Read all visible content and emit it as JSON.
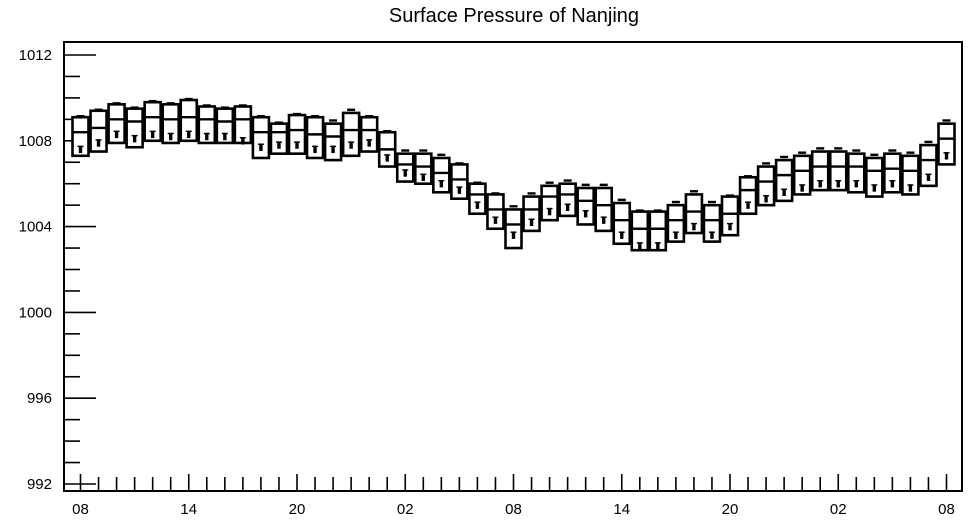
{
  "chart_data": {
    "type": "box",
    "title": "Surface Pressure of Nanjing",
    "xlabel": "",
    "ylabel": "",
    "ylim": [
      992,
      1013.3
    ],
    "y_ticks": [
      "992",
      "996",
      "1000",
      "1004",
      "1008",
      "1012"
    ],
    "x_tick_labels": [
      "08",
      "14",
      "20",
      "02",
      "08",
      "14",
      "20",
      "02",
      "08"
    ],
    "x_tick_hours": [
      0,
      6,
      12,
      18,
      24,
      30,
      36,
      42,
      48
    ],
    "grid": false,
    "series": [
      {
        "values": [
          {
            "hour": 0,
            "low": 1007.3,
            "q1": 1007.3,
            "median": 1008.4,
            "q3": 1009.1,
            "high": 1009.1,
            "marker": 1007.6
          },
          {
            "hour": 1,
            "low": 1007.5,
            "q1": 1007.5,
            "median": 1008.6,
            "q3": 1009.4,
            "high": 1009.4,
            "marker": 1007.9
          },
          {
            "hour": 2,
            "low": 1007.9,
            "q1": 1007.9,
            "median": 1009.0,
            "q3": 1009.7,
            "high": 1009.7,
            "marker": 1008.3
          },
          {
            "hour": 3,
            "low": 1007.7,
            "q1": 1007.7,
            "median": 1008.9,
            "q3": 1009.5,
            "high": 1009.5,
            "marker": 1008.1
          },
          {
            "hour": 4,
            "low": 1008.0,
            "q1": 1008.0,
            "median": 1009.1,
            "q3": 1009.8,
            "high": 1009.8,
            "marker": 1008.3
          },
          {
            "hour": 5,
            "low": 1007.9,
            "q1": 1007.9,
            "median": 1009.0,
            "q3": 1009.7,
            "high": 1009.7,
            "marker": 1008.2
          },
          {
            "hour": 6,
            "low": 1008.0,
            "q1": 1008.0,
            "median": 1009.1,
            "q3": 1009.9,
            "high": 1009.9,
            "marker": 1008.3
          },
          {
            "hour": 7,
            "low": 1007.9,
            "q1": 1007.9,
            "median": 1009.0,
            "q3": 1009.6,
            "high": 1009.6,
            "marker": 1008.2
          },
          {
            "hour": 8,
            "low": 1007.9,
            "q1": 1007.9,
            "median": 1008.9,
            "q3": 1009.5,
            "high": 1009.5,
            "marker": 1008.2
          },
          {
            "hour": 9,
            "low": 1007.9,
            "q1": 1007.9,
            "median": 1009.0,
            "q3": 1009.6,
            "high": 1009.6,
            "marker": 1008.0
          },
          {
            "hour": 10,
            "low": 1007.2,
            "q1": 1007.2,
            "median": 1008.4,
            "q3": 1009.1,
            "high": 1009.1,
            "marker": 1007.7
          },
          {
            "hour": 11,
            "low": 1007.4,
            "q1": 1007.4,
            "median": 1008.4,
            "q3": 1008.8,
            "high": 1008.8,
            "marker": 1007.8
          },
          {
            "hour": 12,
            "low": 1007.4,
            "q1": 1007.4,
            "median": 1008.5,
            "q3": 1009.2,
            "high": 1009.2,
            "marker": 1007.8
          },
          {
            "hour": 13,
            "low": 1007.2,
            "q1": 1007.2,
            "median": 1008.3,
            "q3": 1009.1,
            "high": 1009.1,
            "marker": 1007.6
          },
          {
            "hour": 14,
            "low": 1007.1,
            "q1": 1007.1,
            "median": 1008.2,
            "q3": 1008.8,
            "high": 1008.9,
            "marker": 1007.6
          },
          {
            "hour": 15,
            "low": 1007.3,
            "q1": 1007.3,
            "median": 1008.5,
            "q3": 1009.3,
            "high": 1009.4,
            "marker": 1007.8
          },
          {
            "hour": 16,
            "low": 1007.5,
            "q1": 1007.5,
            "median": 1008.5,
            "q3": 1009.1,
            "high": 1009.1,
            "marker": 1007.9
          },
          {
            "hour": 17,
            "low": 1006.8,
            "q1": 1006.8,
            "median": 1007.6,
            "q3": 1008.4,
            "high": 1008.4,
            "marker": 1007.2
          },
          {
            "hour": 18,
            "low": 1006.1,
            "q1": 1006.1,
            "median": 1006.9,
            "q3": 1007.4,
            "high": 1007.5,
            "marker": 1006.5
          },
          {
            "hour": 19,
            "low": 1006.0,
            "q1": 1006.0,
            "median": 1006.8,
            "q3": 1007.4,
            "high": 1007.5,
            "marker": 1006.3
          },
          {
            "hour": 20,
            "low": 1005.6,
            "q1": 1005.6,
            "median": 1006.5,
            "q3": 1007.2,
            "high": 1007.3,
            "marker": 1006.0
          },
          {
            "hour": 21,
            "low": 1005.3,
            "q1": 1005.3,
            "median": 1006.2,
            "q3": 1006.9,
            "high": 1006.9,
            "marker": 1005.7
          },
          {
            "hour": 22,
            "low": 1004.6,
            "q1": 1004.6,
            "median": 1005.5,
            "q3": 1006.0,
            "high": 1006.0,
            "marker": 1005.0
          },
          {
            "hour": 23,
            "low": 1003.9,
            "q1": 1003.9,
            "median": 1004.8,
            "q3": 1005.5,
            "high": 1005.5,
            "marker": 1004.3
          },
          {
            "hour": 24,
            "low": 1003.0,
            "q1": 1003.0,
            "median": 1004.1,
            "q3": 1004.8,
            "high": 1004.9,
            "marker": 1003.6
          },
          {
            "hour": 25,
            "low": 1003.8,
            "q1": 1003.8,
            "median": 1004.8,
            "q3": 1005.4,
            "high": 1005.5,
            "marker": 1004.2
          },
          {
            "hour": 26,
            "low": 1004.3,
            "q1": 1004.3,
            "median": 1005.4,
            "q3": 1005.9,
            "high": 1006.0,
            "marker": 1004.7
          },
          {
            "hour": 27,
            "low": 1004.5,
            "q1": 1004.5,
            "median": 1005.5,
            "q3": 1006.0,
            "high": 1006.1,
            "marker": 1004.9
          },
          {
            "hour": 28,
            "low": 1004.1,
            "q1": 1004.1,
            "median": 1005.2,
            "q3": 1005.8,
            "high": 1005.9,
            "marker": 1004.6
          },
          {
            "hour": 29,
            "low": 1003.8,
            "q1": 1003.8,
            "median": 1005.0,
            "q3": 1005.8,
            "high": 1005.9,
            "marker": 1004.3
          },
          {
            "hour": 30,
            "low": 1003.2,
            "q1": 1003.2,
            "median": 1004.3,
            "q3": 1005.1,
            "high": 1005.2,
            "marker": 1003.6
          },
          {
            "hour": 31,
            "low": 1002.9,
            "q1": 1002.9,
            "median": 1003.9,
            "q3": 1004.7,
            "high": 1004.7,
            "marker": 1003.1
          },
          {
            "hour": 32,
            "low": 1002.9,
            "q1": 1002.9,
            "median": 1003.9,
            "q3": 1004.7,
            "high": 1004.7,
            "marker": 1003.1
          },
          {
            "hour": 33,
            "low": 1003.3,
            "q1": 1003.3,
            "median": 1004.3,
            "q3": 1005.0,
            "high": 1005.1,
            "marker": 1003.6
          },
          {
            "hour": 34,
            "low": 1003.7,
            "q1": 1003.7,
            "median": 1004.7,
            "q3": 1005.5,
            "high": 1005.6,
            "marker": 1004.0
          },
          {
            "hour": 35,
            "low": 1003.3,
            "q1": 1003.3,
            "median": 1004.3,
            "q3": 1005.0,
            "high": 1005.1,
            "marker": 1003.6
          },
          {
            "hour": 36,
            "low": 1003.6,
            "q1": 1003.6,
            "median": 1004.6,
            "q3": 1005.4,
            "high": 1005.4,
            "marker": 1004.0
          },
          {
            "hour": 37,
            "low": 1004.6,
            "q1": 1004.6,
            "median": 1005.7,
            "q3": 1006.3,
            "high": 1006.3,
            "marker": 1005.0
          },
          {
            "hour": 38,
            "low": 1005.0,
            "q1": 1005.0,
            "median": 1006.1,
            "q3": 1006.8,
            "high": 1006.9,
            "marker": 1005.3
          },
          {
            "hour": 39,
            "low": 1005.2,
            "q1": 1005.2,
            "median": 1006.4,
            "q3": 1007.1,
            "high": 1007.2,
            "marker": 1005.6
          },
          {
            "hour": 40,
            "low": 1005.5,
            "q1": 1005.5,
            "median": 1006.6,
            "q3": 1007.3,
            "high": 1007.4,
            "marker": 1005.8
          },
          {
            "hour": 41,
            "low": 1005.7,
            "q1": 1005.7,
            "median": 1006.8,
            "q3": 1007.5,
            "high": 1007.6,
            "marker": 1006.0
          },
          {
            "hour": 42,
            "low": 1005.7,
            "q1": 1005.7,
            "median": 1006.8,
            "q3": 1007.5,
            "high": 1007.6,
            "marker": 1006.0
          },
          {
            "hour": 43,
            "low": 1005.6,
            "q1": 1005.6,
            "median": 1006.8,
            "q3": 1007.4,
            "high": 1007.5,
            "marker": 1006.0
          },
          {
            "hour": 44,
            "low": 1005.4,
            "q1": 1005.4,
            "median": 1006.6,
            "q3": 1007.2,
            "high": 1007.3,
            "marker": 1005.8
          },
          {
            "hour": 45,
            "low": 1005.6,
            "q1": 1005.6,
            "median": 1006.7,
            "q3": 1007.4,
            "high": 1007.5,
            "marker": 1006.0
          },
          {
            "hour": 46,
            "low": 1005.5,
            "q1": 1005.5,
            "median": 1006.6,
            "q3": 1007.3,
            "high": 1007.4,
            "marker": 1005.8
          },
          {
            "hour": 47,
            "low": 1005.9,
            "q1": 1005.9,
            "median": 1007.1,
            "q3": 1007.8,
            "high": 1007.9,
            "marker": 1006.3
          },
          {
            "hour": 48,
            "low": 1006.9,
            "q1": 1006.9,
            "median": 1008.1,
            "q3": 1008.8,
            "high": 1008.9,
            "marker": 1007.3
          }
        ]
      }
    ]
  }
}
